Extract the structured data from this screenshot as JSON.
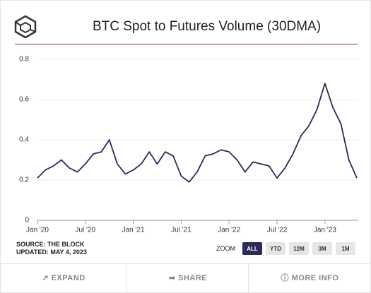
{
  "chart_data": {
    "type": "line",
    "title": "BTC Spot to Futures Volume (30DMA)",
    "categories": [
      "Jan '20",
      null,
      null,
      null,
      null,
      null,
      "Jul '20",
      null,
      null,
      null,
      null,
      null,
      "Jan '21",
      null,
      null,
      null,
      null,
      null,
      "Jul '21",
      null,
      null,
      null,
      null,
      null,
      "Jan '22",
      null,
      null,
      null,
      null,
      null,
      "Jul '22",
      null,
      null,
      null,
      null,
      null,
      "Jan '23",
      null,
      null,
      null,
      null
    ],
    "values": [
      0.21,
      0.25,
      0.27,
      0.3,
      0.26,
      0.24,
      0.28,
      0.33,
      0.34,
      0.4,
      0.28,
      0.23,
      0.25,
      0.28,
      0.34,
      0.28,
      0.34,
      0.32,
      0.22,
      0.19,
      0.24,
      0.32,
      0.33,
      0.35,
      0.34,
      0.3,
      0.24,
      0.29,
      0.28,
      0.27,
      0.21,
      0.26,
      0.33,
      0.42,
      0.47,
      0.55,
      0.68,
      0.56,
      0.48,
      0.3,
      0.21
    ],
    "color": "#2b2a5a",
    "ylim": [
      0,
      0.8
    ],
    "yticks": [
      0,
      0.2,
      0.4,
      0.6,
      0.8
    ],
    "grid": true
  },
  "source": "SOURCE: THE BLOCK",
  "updated": "UPDATED: MAY 4, 2023",
  "zoom": {
    "label": "ZOOM",
    "buttons": [
      "ALL",
      "YTD",
      "12M",
      "3M",
      "1M"
    ]
  },
  "footer": [
    "EXPAND",
    "SHARE",
    "MORE INFO"
  ]
}
